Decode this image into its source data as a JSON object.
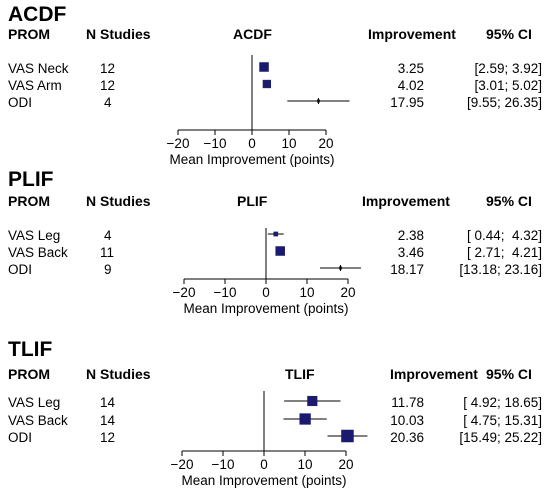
{
  "colors": {
    "box": "#1a1a6e",
    "line": "#000000",
    "text": "#000000"
  },
  "headers": {
    "prom": "PROM",
    "n": "N Studies",
    "improvement": "Improvement",
    "ci": "95% CI"
  },
  "axis_label": "Mean Improvement (points)",
  "chart_data": [
    {
      "type": "forest",
      "title": "ACDF",
      "plot_title": "ACDF",
      "xlim": [
        -20,
        20
      ],
      "xticks": [
        -20,
        -10,
        0,
        10,
        20
      ],
      "xlabel": "Mean Improvement (points)",
      "rows": [
        {
          "prom": "VAS Neck",
          "n": "12",
          "est": 3.25,
          "lo": 2.59,
          "hi": 3.92,
          "improvement": "3.25",
          "ci": "[2.59; 3.92]",
          "weight": 0.75
        },
        {
          "prom": "VAS Arm",
          "n": "12",
          "est": 4.02,
          "lo": 3.01,
          "hi": 5.02,
          "improvement": "4.02",
          "ci": "[3.01; 5.02]",
          "weight": 0.65
        },
        {
          "prom": "ODI",
          "n": "4",
          "est": 17.95,
          "lo": 9.55,
          "hi": 26.35,
          "improvement": "17.95",
          "ci": "[9.55; 26.35]",
          "weight": 0.15
        }
      ]
    },
    {
      "type": "forest",
      "title": "PLIF",
      "plot_title": "PLIF",
      "xlim": [
        -20,
        20
      ],
      "xticks": [
        -20,
        -10,
        0,
        10,
        20
      ],
      "xlabel": "Mean Improvement (points)",
      "rows": [
        {
          "prom": "VAS Leg",
          "n": "4",
          "est": 2.38,
          "lo": 0.44,
          "hi": 4.32,
          "improvement": "2.38",
          "ci": "[ 0.44;  4.32]",
          "weight": 0.35
        },
        {
          "prom": "VAS Back",
          "n": "11",
          "est": 3.46,
          "lo": 2.71,
          "hi": 4.21,
          "improvement": "3.46",
          "ci": "[ 2.71;  4.21]",
          "weight": 0.75
        },
        {
          "prom": "ODI",
          "n": "9",
          "est": 18.17,
          "lo": 13.18,
          "hi": 23.16,
          "improvement": "18.17",
          "ci": "[13.18; 23.16]",
          "weight": 0.2
        }
      ]
    },
    {
      "type": "forest",
      "title": "TLIF",
      "plot_title": "TLIF",
      "xlim": [
        -20,
        20
      ],
      "xticks": [
        -20,
        -10,
        0,
        10,
        20
      ],
      "xlabel": "Mean Improvement (points)",
      "rows": [
        {
          "prom": "VAS Leg",
          "n": "14",
          "est": 11.78,
          "lo": 4.92,
          "hi": 18.65,
          "improvement": "11.78",
          "ci": "[ 4.92; 18.65]",
          "weight": 0.8
        },
        {
          "prom": "VAS Back",
          "n": "14",
          "est": 10.03,
          "lo": 4.75,
          "hi": 15.31,
          "improvement": "10.03",
          "ci": "[ 4.75; 15.31]",
          "weight": 0.9
        },
        {
          "prom": "ODI",
          "n": "12",
          "est": 20.36,
          "lo": 15.49,
          "hi": 25.22,
          "improvement": "20.36",
          "ci": "[15.49; 25.22]",
          "weight": 1.0
        }
      ]
    }
  ]
}
